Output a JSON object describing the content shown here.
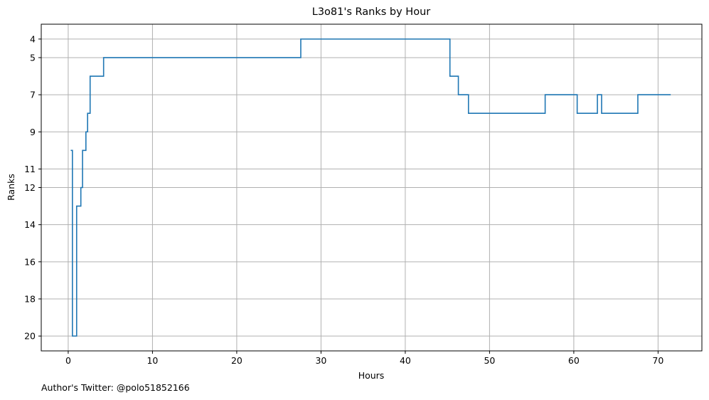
{
  "chart_data": {
    "type": "line",
    "step": "post",
    "title": "L3o81's Ranks by Hour",
    "xlabel": "Hours",
    "ylabel": "Ranks",
    "xlim": [
      -3.2,
      75.2
    ],
    "ylim": [
      20.8,
      3.2
    ],
    "y_inverted": true,
    "grid": true,
    "line_color": "#1f77b4",
    "x_ticks": [
      0,
      10,
      20,
      30,
      40,
      50,
      60,
      70
    ],
    "y_ticks": [
      4,
      5,
      7,
      9,
      11,
      12,
      14,
      16,
      18,
      20
    ],
    "series": [
      {
        "x": [
          0.3,
          0.5,
          1.0,
          1.5,
          1.7,
          2.1,
          2.3,
          2.5,
          2.6,
          4.2,
          27.6,
          45.3,
          46.3,
          47.5,
          56.6,
          60.4,
          62.8,
          63.3,
          67.6,
          71.5
        ],
        "y": [
          10,
          20,
          13,
          12,
          10,
          9,
          8,
          8,
          6,
          5,
          4,
          6,
          7,
          8,
          7,
          8,
          7,
          8,
          7,
          7
        ]
      }
    ]
  },
  "footer": {
    "author_text": "Author's Twitter: @polo51852166"
  }
}
